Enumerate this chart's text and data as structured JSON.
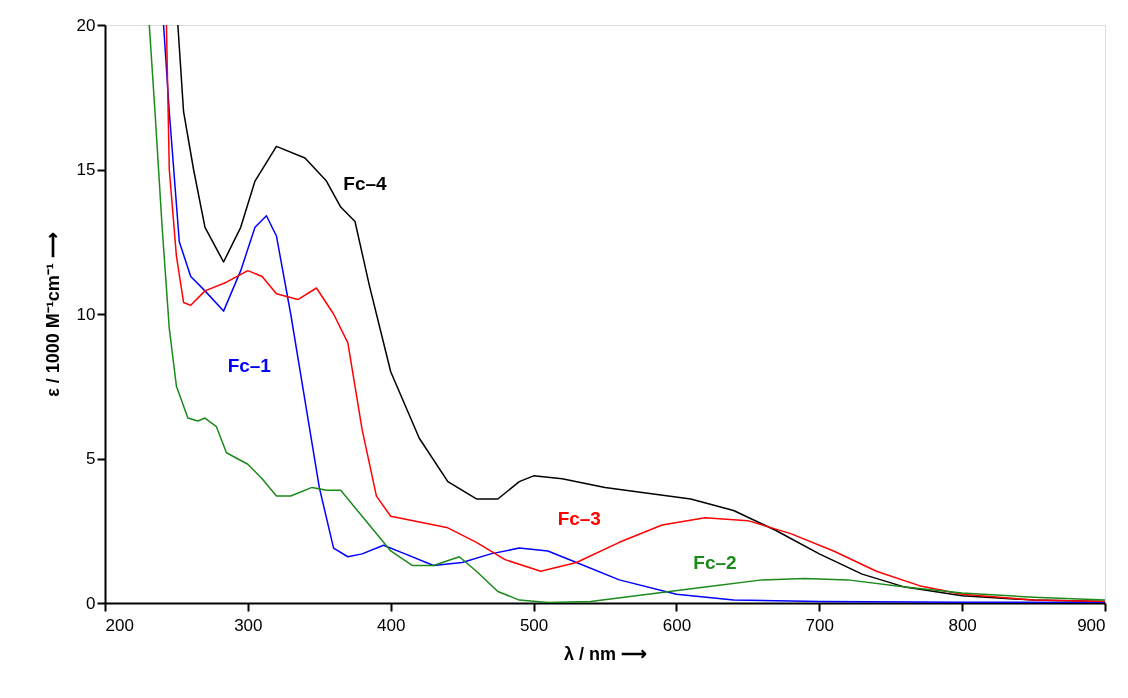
{
  "chart_data": {
    "type": "line",
    "xlabel": "λ / nm  ⟶",
    "ylabel": "ε / 1000 M⁻¹cm⁻¹  ⟶",
    "xlim": [
      200,
      900
    ],
    "xticks": [
      200,
      300,
      400,
      500,
      600,
      700,
      800,
      900
    ],
    "ylim": [
      0,
      20
    ],
    "yticks": [
      0,
      5,
      10,
      15,
      20
    ],
    "grid": false,
    "legend": false,
    "marker": "none",
    "line_style": "solid",
    "series": [
      {
        "name": "Fc–4",
        "color": "#000000",
        "x": [
          251,
          255,
          262,
          270,
          283,
          295,
          305,
          320,
          340,
          355,
          365,
          375,
          385,
          400,
          420,
          440,
          460,
          475,
          490,
          500,
          520,
          550,
          580,
          610,
          640,
          670,
          700,
          730,
          760,
          800,
          850,
          900
        ],
        "values": [
          20,
          17,
          15,
          13,
          11.8,
          13,
          14.6,
          15.8,
          15.4,
          14.6,
          13.7,
          13.2,
          11,
          8,
          5.7,
          4.2,
          3.6,
          3.6,
          4.2,
          4.4,
          4.3,
          4.0,
          3.8,
          3.6,
          3.2,
          2.5,
          1.7,
          1.0,
          0.55,
          0.25,
          0.1,
          0.05
        ]
      },
      {
        "name": "Fc–1",
        "color": "#0000ff",
        "x": [
          241,
          245,
          252,
          260,
          270,
          283,
          295,
          305,
          313,
          320,
          330,
          340,
          350,
          360,
          370,
          380,
          395,
          410,
          430,
          450,
          470,
          490,
          510,
          530,
          560,
          600,
          640,
          700,
          800,
          900
        ],
        "values": [
          20,
          17,
          12.5,
          11.3,
          10.8,
          10.1,
          11.5,
          13,
          13.4,
          12.7,
          10,
          7,
          4,
          1.9,
          1.6,
          1.7,
          2.0,
          1.7,
          1.3,
          1.4,
          1.7,
          1.9,
          1.8,
          1.4,
          0.8,
          0.3,
          0.1,
          0.05,
          0.03,
          0.02
        ]
      },
      {
        "name": "Fc–3",
        "color": "#ff0000",
        "x": [
          243,
          245,
          250,
          255,
          260,
          270,
          285,
          300,
          310,
          320,
          335,
          348,
          360,
          370,
          380,
          390,
          400,
          420,
          440,
          460,
          480,
          505,
          530,
          560,
          590,
          620,
          650,
          680,
          710,
          740,
          770,
          800,
          850,
          900
        ],
        "values": [
          20,
          15,
          12,
          10.4,
          10.3,
          10.8,
          11.1,
          11.5,
          11.3,
          10.7,
          10.5,
          10.9,
          10.0,
          9,
          6,
          3.7,
          3.0,
          2.8,
          2.6,
          2.1,
          1.5,
          1.1,
          1.4,
          2.1,
          2.7,
          2.95,
          2.85,
          2.4,
          1.8,
          1.1,
          0.6,
          0.3,
          0.1,
          0.05
        ]
      },
      {
        "name": "Fc–2",
        "color": "#1a8a1a",
        "x": [
          231,
          235,
          240,
          245,
          250,
          258,
          265,
          270,
          278,
          285,
          300,
          310,
          320,
          330,
          345,
          355,
          365,
          380,
          400,
          415,
          430,
          448,
          460,
          475,
          490,
          510,
          540,
          580,
          620,
          660,
          690,
          720,
          760,
          800,
          850,
          900
        ],
        "values": [
          20,
          17,
          13,
          9.5,
          7.5,
          6.4,
          6.3,
          6.4,
          6.1,
          5.2,
          4.8,
          4.3,
          3.7,
          3.7,
          4.0,
          3.9,
          3.9,
          3.0,
          1.8,
          1.3,
          1.3,
          1.6,
          1.1,
          0.4,
          0.1,
          0.02,
          0.05,
          0.3,
          0.55,
          0.8,
          0.85,
          0.8,
          0.55,
          0.35,
          0.2,
          0.1
        ]
      }
    ]
  }
}
